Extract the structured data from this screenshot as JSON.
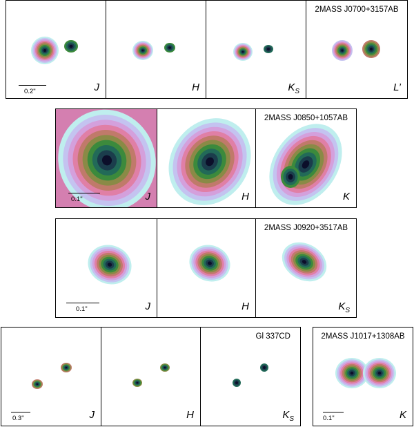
{
  "rows": [
    {
      "id": "row1",
      "name": "2MASS J0700+3157AB",
      "scale": "0.2\"",
      "bands": [
        "J",
        "H",
        "K",
        "L’"
      ],
      "band_subs": [
        "",
        "",
        "S",
        ""
      ]
    },
    {
      "id": "row2",
      "name": "2MASS J0850+1057AB",
      "scale": "0.1\"",
      "bands": [
        "J",
        "H",
        "K"
      ],
      "band_subs": [
        "",
        "",
        ""
      ]
    },
    {
      "id": "row3",
      "name": "2MASS J0920+3517AB",
      "scale": "0.1\"",
      "bands": [
        "J",
        "H",
        "K"
      ],
      "band_subs": [
        "",
        "",
        "S"
      ]
    },
    {
      "id": "row4",
      "name": "Gl 337CD",
      "scale": "0.3\"",
      "bands": [
        "J",
        "H",
        "K"
      ],
      "band_subs": [
        "",
        "",
        "S"
      ]
    },
    {
      "id": "row5",
      "name": "2MASS J1017+1308AB",
      "scale": "0.1\"",
      "bands": [
        "K"
      ],
      "band_subs": [
        ""
      ]
    }
  ],
  "palette": [
    "#bfeeee",
    "#c4c3f0",
    "#d4a0dc",
    "#e07fa6",
    "#c07a6a",
    "#8a8a46",
    "#3c8a3c",
    "#226a58",
    "#1b3d4c",
    "#0c0f2a"
  ]
}
